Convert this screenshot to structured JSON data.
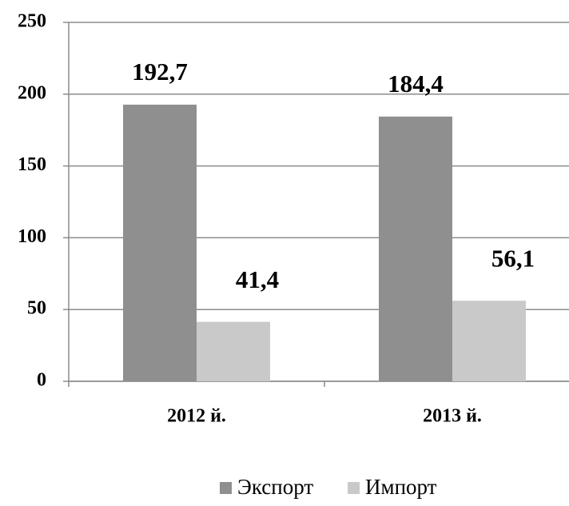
{
  "chart_data": {
    "type": "bar",
    "categories": [
      "2012 й.",
      "2013 й."
    ],
    "series": [
      {
        "name": "Экспорт",
        "color": "#8f8f8f",
        "values": [
          192.7,
          184.4
        ],
        "value_labels": [
          "192,7",
          "184,4"
        ]
      },
      {
        "name": "Импорт",
        "color": "#c9c9c9",
        "values": [
          41.4,
          56.1
        ],
        "value_labels": [
          "41,4",
          "56,1"
        ]
      }
    ],
    "ylim": [
      0,
      250
    ],
    "yticks": [
      0,
      50,
      100,
      150,
      200,
      250
    ],
    "grid": true,
    "legend": "bottom"
  }
}
